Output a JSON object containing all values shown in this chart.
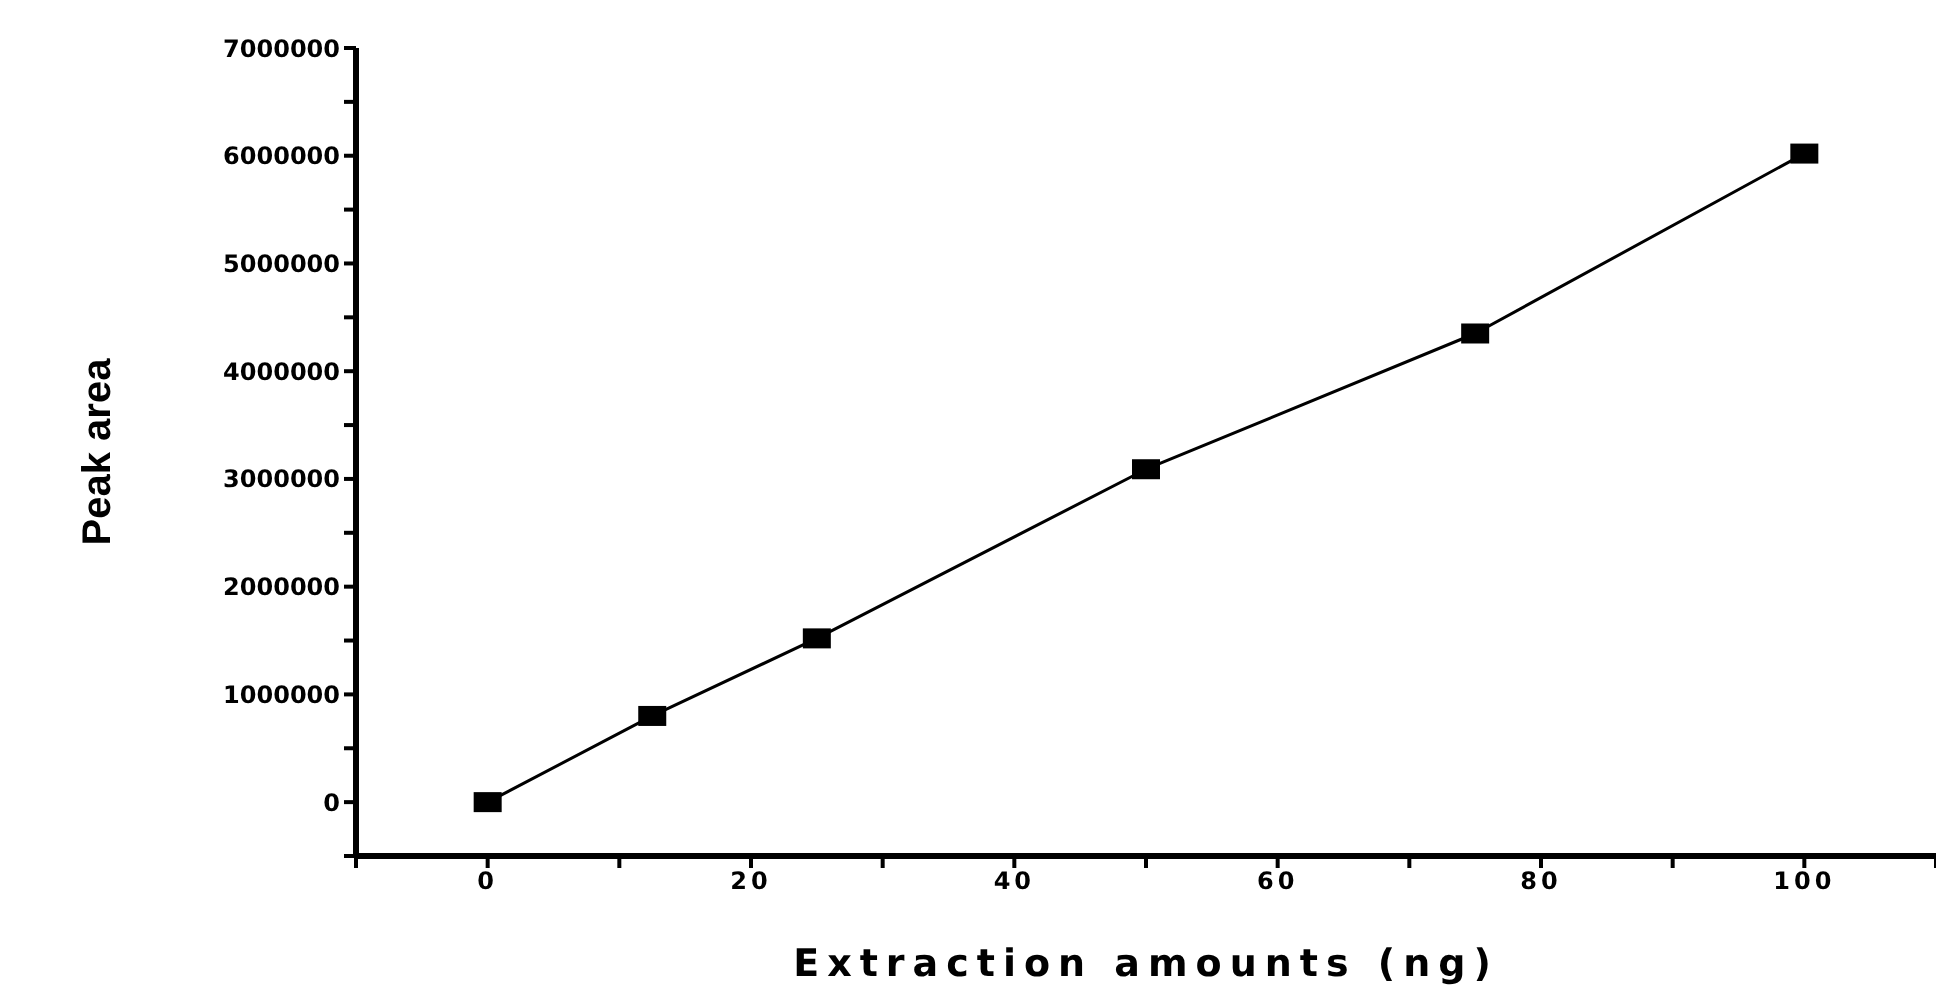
{
  "chart_data": {
    "type": "line",
    "xlabel": "Extraction amounts (ng)",
    "ylabel": "Peak area",
    "x": [
      0,
      12.5,
      25,
      50,
      75,
      100
    ],
    "series": [
      {
        "color": "#000000",
        "values": [
          0,
          800000,
          1520000,
          3090000,
          4350000,
          6020000
        ]
      }
    ],
    "xlim": [
      -10,
      110
    ],
    "ylim": [
      -500000,
      7000000
    ],
    "xticks": [
      {
        "value": -10,
        "label": null
      },
      0,
      {
        "value": 10,
        "label": null
      },
      20,
      {
        "value": 30,
        "label": null
      },
      40,
      {
        "value": 50,
        "label": null
      },
      60,
      {
        "value": 70,
        "label": null
      },
      80,
      {
        "value": 90,
        "label": null
      },
      100,
      {
        "value": 110,
        "label": null
      }
    ],
    "yticks": [
      {
        "value": -500000,
        "label": null
      },
      0,
      {
        "value": 500000,
        "label": null
      },
      1000000,
      {
        "value": 1500000,
        "label": null
      },
      2000000,
      {
        "value": 2500000,
        "label": null
      },
      3000000,
      {
        "value": 3500000,
        "label": null
      },
      4000000,
      {
        "value": 4500000,
        "label": null
      },
      5000000,
      {
        "value": 5500000,
        "label": null
      },
      6000000,
      {
        "value": 6500000,
        "label": null
      },
      7000000
    ],
    "grid": false,
    "legend": false,
    "marker": "square",
    "line_style": "solid"
  }
}
